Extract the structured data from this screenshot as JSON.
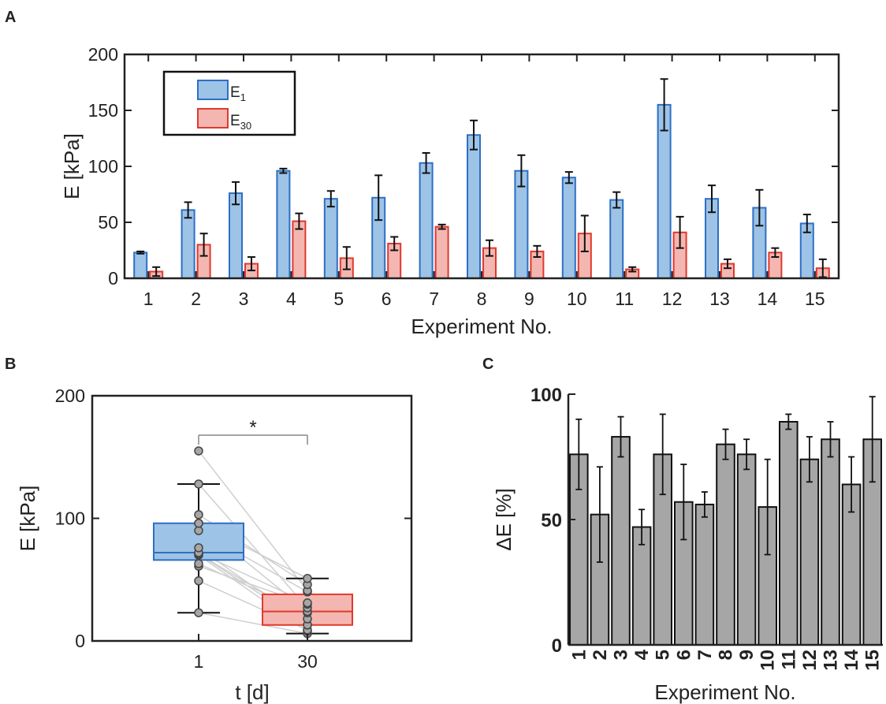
{
  "colors": {
    "e1_fill": "#9dc3e6",
    "e1_edge": "#2e6fc4",
    "e30_fill": "#f4b6b0",
    "e30_edge": "#e0392e",
    "gray_fill": "#a6a6a6",
    "axis": "#222222"
  },
  "chart_data": [
    {
      "panel": "A",
      "type": "bar",
      "xlabel": "Experiment No.",
      "ylabel": "E [kPa]",
      "ylim": [
        0,
        200
      ],
      "yticks": [
        0,
        50,
        100,
        150,
        200
      ],
      "categories": [
        "1",
        "2",
        "3",
        "4",
        "5",
        "6",
        "7",
        "8",
        "9",
        "10",
        "11",
        "12",
        "13",
        "14",
        "15"
      ],
      "legend": {
        "placement": "top-left",
        "entries": [
          {
            "main": "E",
            "sub": "1"
          },
          {
            "main": "E",
            "sub": "30"
          }
        ]
      },
      "series": [
        {
          "name": "E1",
          "values": [
            23,
            61,
            76,
            96,
            71,
            72,
            103,
            128,
            96,
            90,
            70,
            155,
            71,
            63,
            49
          ],
          "errors": [
            1,
            7,
            10,
            2,
            7,
            20,
            9,
            13,
            14,
            5,
            7,
            23,
            12,
            16,
            8
          ]
        },
        {
          "name": "E30",
          "values": [
            6,
            30,
            13,
            51,
            18,
            31,
            46,
            27,
            24,
            40,
            8,
            41,
            13,
            23,
            9
          ],
          "errors": [
            4,
            10,
            6,
            7,
            10,
            6,
            2,
            7,
            5,
            16,
            2,
            14,
            4,
            4,
            8
          ]
        }
      ]
    },
    {
      "panel": "B",
      "type": "box",
      "xlabel": "t [d]",
      "ylabel": "E [kPa]",
      "ylim": [
        0,
        200
      ],
      "yticks": [
        0,
        100,
        200
      ],
      "categories": [
        "1",
        "30"
      ],
      "significance": "*",
      "boxes": [
        {
          "min": 23,
          "q1": 66,
          "median": 72,
          "q3": 96,
          "max": 128,
          "outliers": [
            155
          ],
          "points": [
            23,
            49,
            61,
            63,
            70,
            71,
            71,
            72,
            76,
            90,
            96,
            96,
            103,
            128,
            155
          ]
        },
        {
          "min": 6,
          "q1": 13,
          "median": 24,
          "q3": 38,
          "max": 51,
          "outliers": [],
          "points": [
            6,
            8,
            9,
            13,
            13,
            18,
            23,
            24,
            27,
            30,
            31,
            40,
            41,
            46,
            51
          ]
        }
      ],
      "pairs_note_ignored": true
    },
    {
      "panel": "C",
      "type": "bar",
      "xlabel": "Experiment No.",
      "ylabel": "ΔE [%]",
      "ylim": [
        0,
        100
      ],
      "yticks": [
        0,
        50,
        100
      ],
      "categories": [
        "1",
        "2",
        "3",
        "4",
        "5",
        "6",
        "7",
        "8",
        "9",
        "10",
        "11",
        "12",
        "13",
        "14",
        "15"
      ],
      "series": [
        {
          "name": "",
          "values": [
            76,
            52,
            83,
            47,
            76,
            57,
            56,
            80,
            76,
            55,
            89,
            74,
            82,
            64,
            82
          ],
          "errors": [
            14,
            19,
            8,
            7,
            16,
            15,
            5,
            6,
            6,
            19,
            3,
            9,
            7,
            11,
            17
          ]
        }
      ]
    }
  ],
  "labels": {
    "a": "A",
    "b": "B",
    "c": "C"
  }
}
